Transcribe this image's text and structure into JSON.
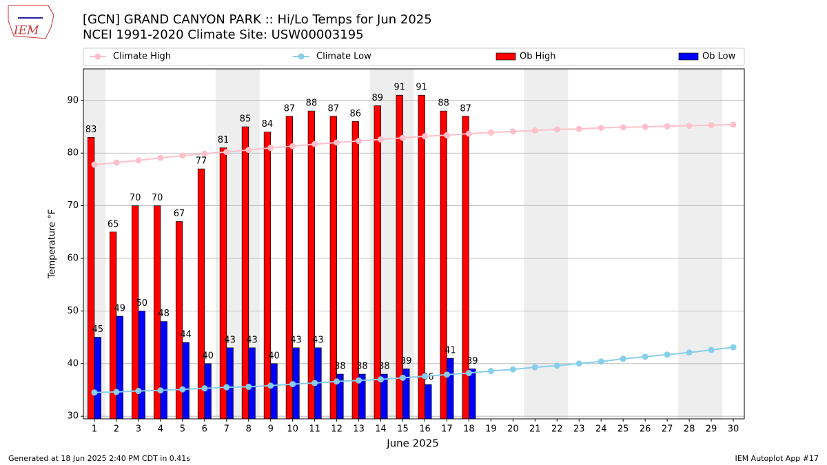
{
  "logo": "IEM",
  "footer": {
    "left": "Generated at 18 Jun 2025 2:40 PM CDT in 0.41s",
    "right": "IEM Autoplot App #17"
  },
  "chart_data": {
    "type": "bar",
    "title": "[GCN] GRAND CANYON PARK :: Hi/Lo Temps for Jun 2025",
    "subtitle": "NCEI 1991-2020 Climate Site: USW00003195",
    "xlabel": "June 2025",
    "ylabel": "Temperature °F",
    "x": [
      1,
      2,
      3,
      4,
      5,
      6,
      7,
      8,
      9,
      10,
      11,
      12,
      13,
      14,
      15,
      16,
      17,
      18,
      19,
      20,
      21,
      22,
      23,
      24,
      25,
      26,
      27,
      28,
      29,
      30
    ],
    "xlim": [
      0.5,
      30.5
    ],
    "xticks": [
      1,
      2,
      3,
      4,
      5,
      6,
      7,
      8,
      9,
      10,
      11,
      12,
      13,
      14,
      15,
      16,
      17,
      18,
      19,
      20,
      21,
      22,
      23,
      24,
      25,
      26,
      27,
      28,
      29,
      30
    ],
    "ylim": [
      29.5,
      96
    ],
    "yticks": [
      30,
      40,
      50,
      60,
      70,
      80,
      90
    ],
    "grid": true,
    "shade_spans": [
      [
        0.5,
        1.5
      ],
      [
        6.5,
        8.5
      ],
      [
        13.5,
        15.5
      ],
      [
        20.5,
        22.5
      ],
      [
        27.5,
        29.5
      ]
    ],
    "series": [
      {
        "name": "Climate High",
        "kind": "line",
        "color": "#ffc0cb",
        "values": [
          77.8,
          78.2,
          78.6,
          79.1,
          79.5,
          79.9,
          80.2,
          80.6,
          81.0,
          81.3,
          81.7,
          82.0,
          82.3,
          82.6,
          82.9,
          83.2,
          83.4,
          83.7,
          83.9,
          84.1,
          84.3,
          84.5,
          84.6,
          84.8,
          84.9,
          85.0,
          85.1,
          85.2,
          85.3,
          85.4
        ]
      },
      {
        "name": "Climate Low",
        "kind": "line",
        "color": "#87ceeb",
        "values": [
          34.5,
          34.6,
          34.8,
          34.9,
          35.1,
          35.3,
          35.5,
          35.6,
          35.8,
          36.1,
          36.3,
          36.6,
          36.8,
          37.0,
          37.3,
          37.6,
          37.9,
          38.2,
          38.6,
          38.9,
          39.3,
          39.6,
          40.0,
          40.4,
          40.9,
          41.3,
          41.7,
          42.1,
          42.6,
          43.1
        ]
      },
      {
        "name": "Ob High",
        "kind": "bar",
        "color": "#ff0000",
        "values": [
          83,
          65,
          70,
          70,
          67,
          77,
          81,
          85,
          84,
          87,
          88,
          87,
          86,
          89,
          91,
          91,
          88,
          87,
          null,
          null,
          null,
          null,
          null,
          null,
          null,
          null,
          null,
          null,
          null,
          null
        ]
      },
      {
        "name": "Ob Low",
        "kind": "bar",
        "color": "#0000ff",
        "values": [
          45,
          49,
          50,
          48,
          44,
          40,
          43,
          43,
          40,
          43,
          43,
          38,
          38,
          38,
          39,
          36,
          41,
          39,
          null,
          null,
          null,
          null,
          null,
          null,
          null,
          null,
          null,
          null,
          null,
          null
        ]
      }
    ]
  }
}
